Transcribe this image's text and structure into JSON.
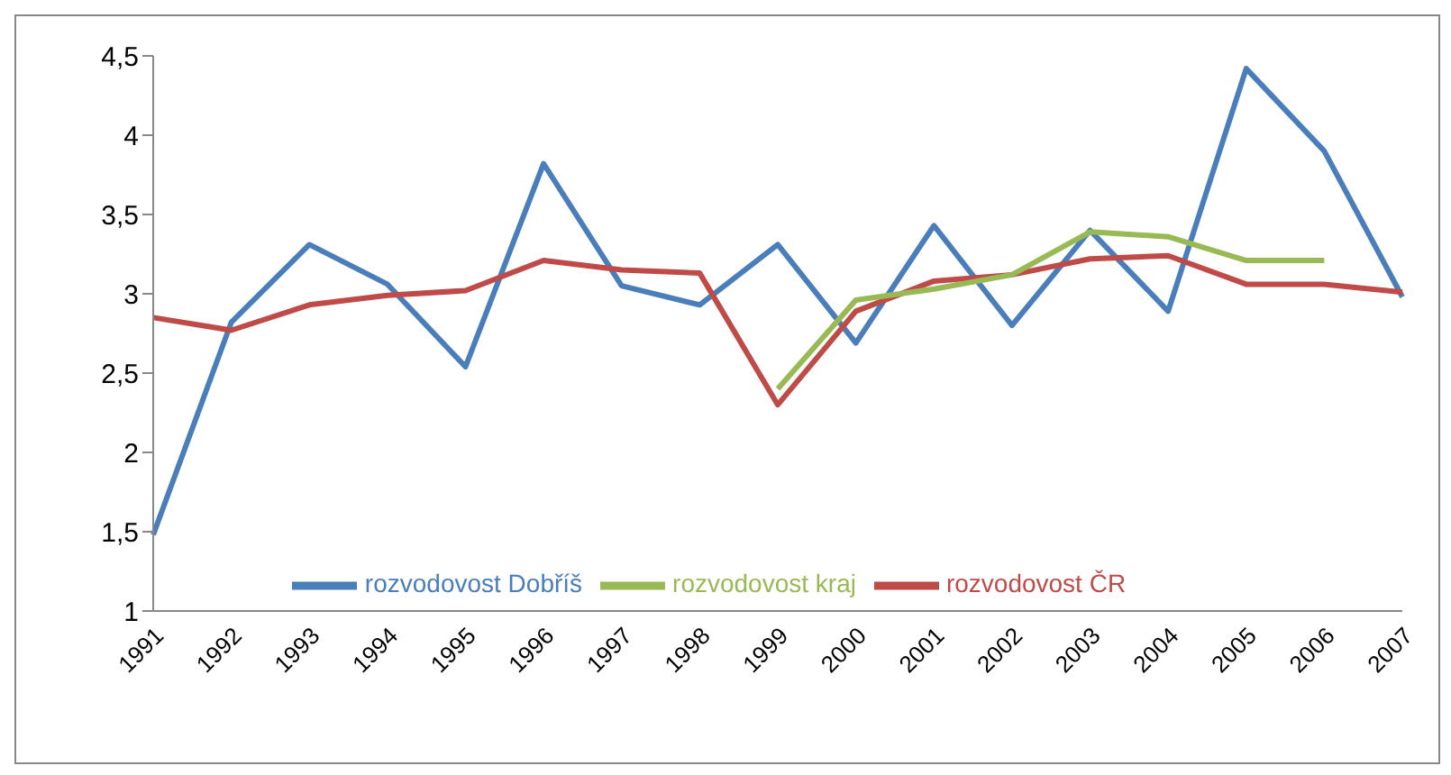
{
  "chart_data": {
    "type": "line",
    "categories": [
      "1991",
      "1992",
      "1993",
      "1994",
      "1995",
      "1996",
      "1997",
      "1998",
      "1999",
      "2000",
      "2001",
      "2002",
      "2003",
      "2004",
      "2005",
      "2006",
      "2007"
    ],
    "series": [
      {
        "name": "rozvodovost Dobříš",
        "color": "#4a7ebb",
        "values": [
          1.48,
          2.82,
          3.31,
          3.06,
          2.54,
          3.82,
          3.05,
          2.93,
          3.31,
          2.69,
          3.43,
          2.8,
          3.4,
          2.89,
          4.42,
          3.9,
          2.98
        ]
      },
      {
        "name": "rozvodovost ČR",
        "color": "#be4b48",
        "values": [
          2.85,
          2.77,
          2.93,
          2.99,
          3.02,
          3.21,
          3.15,
          3.13,
          2.3,
          2.89,
          3.08,
          3.12,
          3.22,
          3.24,
          3.06,
          3.06,
          3.01
        ]
      },
      {
        "name": "rozvodovost kraj",
        "color": "#98b954",
        "values": [
          null,
          null,
          null,
          null,
          null,
          null,
          null,
          null,
          2.4,
          2.96,
          3.03,
          3.12,
          3.39,
          3.36,
          3.21,
          3.21,
          null
        ]
      }
    ],
    "ylim": [
      1,
      4.5
    ],
    "yticks": [
      1,
      {
        "value": 1.5,
        "label": "1,5"
      },
      2,
      {
        "value": 2.5,
        "label": "2,5"
      },
      3,
      {
        "value": 3.5,
        "label": "3,5"
      },
      4,
      {
        "value": 4.5,
        "label": "4,5"
      }
    ],
    "grid": false,
    "legend": "bottom",
    "marker": "none",
    "line_style": "solid"
  }
}
